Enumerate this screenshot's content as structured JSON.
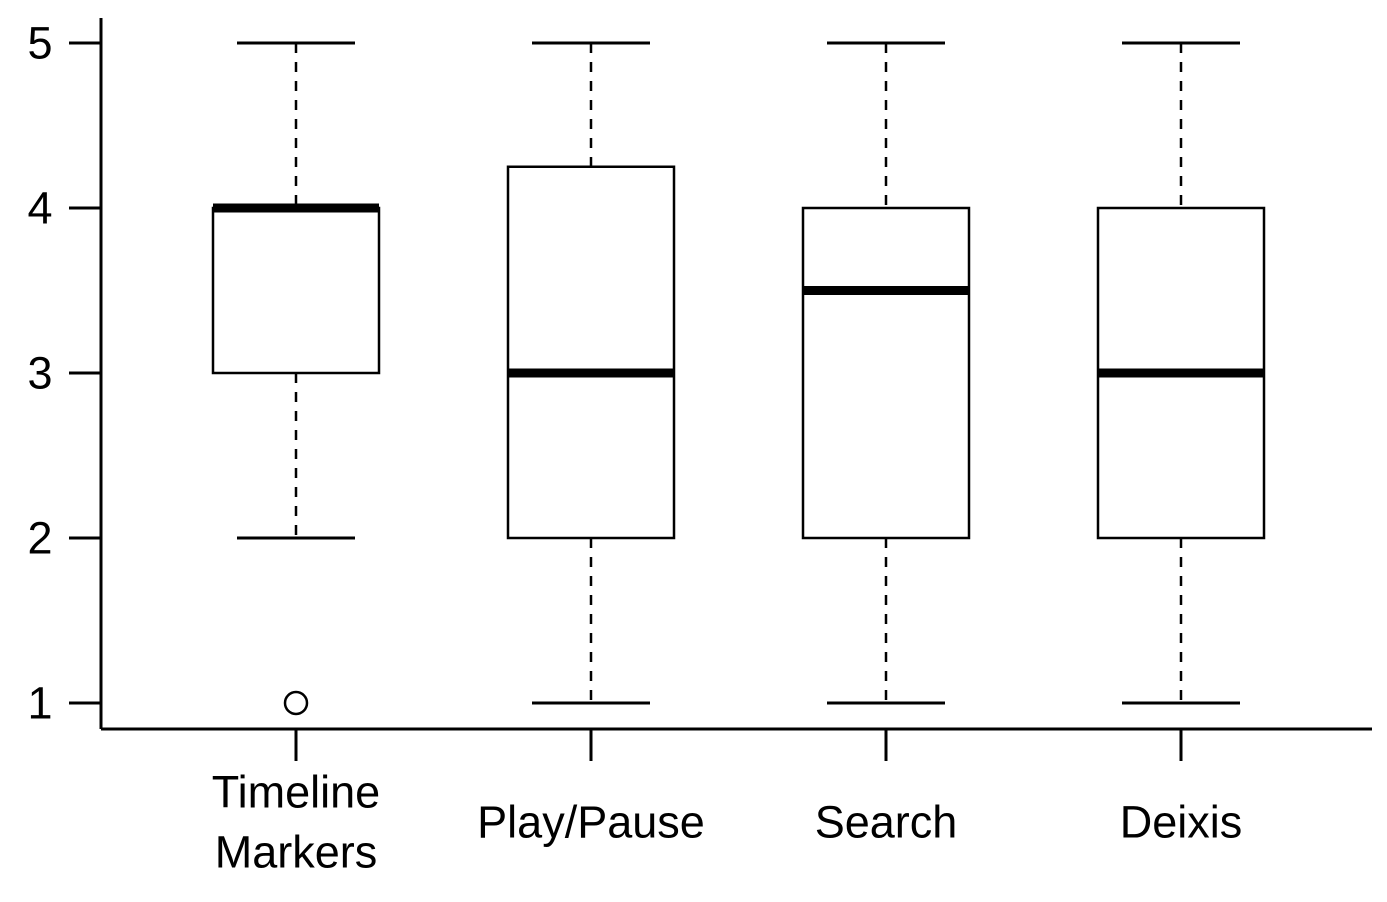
{
  "chart_data": {
    "type": "boxplot",
    "title": "",
    "xlabel": "",
    "ylabel": "",
    "ylim": [
      1,
      5
    ],
    "y_ticks": [
      1,
      2,
      3,
      4,
      5
    ],
    "y_tick_labels": [
      "1",
      "2",
      "3",
      "4",
      "5"
    ],
    "grid": false,
    "legend": "none",
    "categories": [
      [
        "Timeline",
        "Markers"
      ],
      [
        "Play/Pause"
      ],
      [
        "Search"
      ],
      [
        "Deixis"
      ]
    ],
    "boxes": [
      {
        "whisker_low": 2,
        "q1": 3,
        "median": 4,
        "q3": 4,
        "whisker_high": 5,
        "outliers": [
          1
        ]
      },
      {
        "whisker_low": 1,
        "q1": 2,
        "median": 3,
        "q3": 4.25,
        "whisker_high": 5,
        "outliers": []
      },
      {
        "whisker_low": 1,
        "q1": 2,
        "median": 3.5,
        "q3": 4,
        "whisker_high": 5,
        "outliers": []
      },
      {
        "whisker_low": 1,
        "q1": 2,
        "median": 3,
        "q3": 4,
        "whisker_high": 5,
        "outliers": []
      }
    ],
    "colors": {
      "box_fill": "#ffffff",
      "stroke": "#000000"
    }
  }
}
